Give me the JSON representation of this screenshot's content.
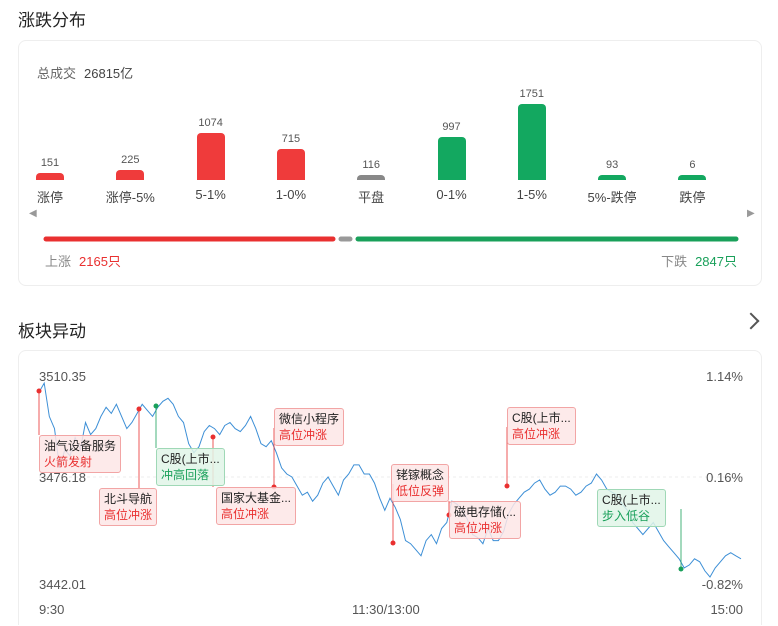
{
  "distribution": {
    "title": "涨跌分布",
    "total_label": "总成交",
    "total_value": "26815亿",
    "bars": [
      {
        "label": "涨停",
        "value": 151,
        "color": "#ef3b3b"
      },
      {
        "label": "涨停-5%",
        "value": 225,
        "color": "#ef3b3b"
      },
      {
        "label": "5-1%",
        "value": 1074,
        "color": "#ef3b3b"
      },
      {
        "label": "1-0%",
        "value": 715,
        "color": "#ef3b3b"
      },
      {
        "label": "平盘",
        "value": 116,
        "color": "#888888"
      },
      {
        "label": "0-1%",
        "value": 997,
        "color": "#13a860"
      },
      {
        "label": "1-5%",
        "value": 1751,
        "color": "#13a860"
      },
      {
        "label": "5%-跌停",
        "value": 93,
        "color": "#13a860"
      },
      {
        "label": "跌停",
        "value": 6,
        "color": "#13a860"
      }
    ],
    "up_label": "上涨",
    "up_value": "2165只",
    "down_label": "下跌",
    "down_value": "2847只"
  },
  "sector": {
    "title": "板块异动",
    "chart_data": {
      "type": "line",
      "y_left_ticks": [
        "3510.35",
        "3476.18",
        "3442.01"
      ],
      "y_right_ticks": [
        "1.14%",
        "0.16%",
        "-0.82%"
      ],
      "x_ticks": [
        "9:30",
        "11:30/13:00",
        "15:00"
      ],
      "ylim": [
        3442.01,
        3510.35
      ],
      "series": [
        {
          "values": [
            3505,
            3508,
            3497,
            3493,
            3480,
            3486,
            3484,
            3490,
            3486,
            3495,
            3491,
            3493,
            3497,
            3500,
            3498,
            3501,
            3497,
            3493,
            3495,
            3498,
            3501,
            3499,
            3497,
            3500,
            3502,
            3503,
            3501,
            3497,
            3495,
            3488,
            3485,
            3487,
            3492,
            3494,
            3493,
            3491,
            3494,
            3495,
            3493,
            3492,
            3494,
            3497,
            3493,
            3488,
            3487,
            3489,
            3485,
            3480,
            3478,
            3477,
            3474,
            3471,
            3472,
            3469,
            3471,
            3475,
            3477,
            3474,
            3471,
            3476,
            3478,
            3481,
            3481,
            3478,
            3478,
            3475,
            3470,
            3466,
            3470,
            3467,
            3463,
            3456,
            3455,
            3453,
            3451,
            3456,
            3458,
            3455,
            3460,
            3462,
            3469,
            3468,
            3466,
            3463,
            3458,
            3457,
            3455,
            3460,
            3456,
            3456,
            3459,
            3465,
            3468,
            3470,
            3472,
            3473,
            3475,
            3476,
            3473,
            3471,
            3472,
            3474,
            3474,
            3473,
            3471,
            3472,
            3474,
            3475,
            3478,
            3476,
            3473,
            3472,
            3471,
            3468,
            3466,
            3462,
            3460,
            3458,
            3460,
            3462,
            3459,
            3456,
            3454,
            3452,
            3450,
            3447,
            3448,
            3450,
            3449,
            3446,
            3444,
            3447,
            3449,
            3451,
            3452,
            3451,
            3450
          ]
        }
      ],
      "annotations": [
        {
          "name": "油气设备服务",
          "tag": "火箭发射",
          "tone": "red"
        },
        {
          "name": "北斗导航",
          "tag": "高位冲涨",
          "tone": "red"
        },
        {
          "name": "C股(上市...",
          "tag": "冲高回落",
          "tone": "green"
        },
        {
          "name": "国家大基金...",
          "tag": "高位冲涨",
          "tone": "red"
        },
        {
          "name": "微信小程序",
          "tag": "高位冲涨",
          "tone": "red"
        },
        {
          "name": "铑镓概念",
          "tag": "低位反弹",
          "tone": "red"
        },
        {
          "name": "磁电存储(...",
          "tag": "高位冲涨",
          "tone": "red"
        },
        {
          "name": "C股(上市...",
          "tag": "高位冲涨",
          "tone": "red"
        },
        {
          "name": "C股(上市...",
          "tag": "步入低谷",
          "tone": "green"
        }
      ]
    }
  }
}
